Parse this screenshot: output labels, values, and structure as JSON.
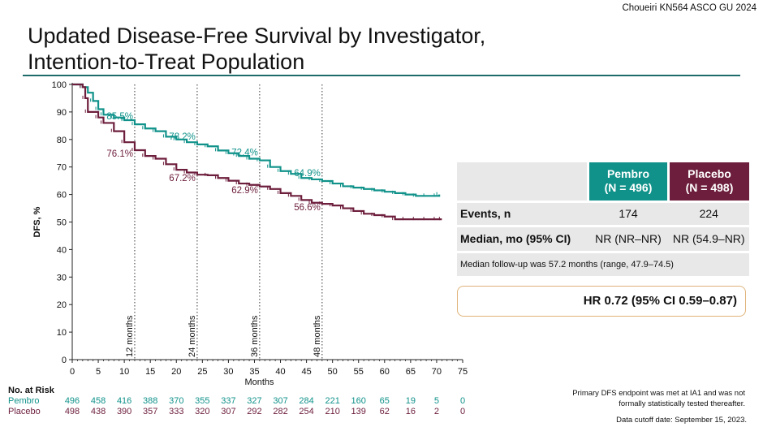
{
  "citation": "Choueiri KN564 ASCO GU 2024",
  "title_lines": [
    "Updated Disease-Free Survival by Investigator,",
    "Intention-to-Treat Population"
  ],
  "colors": {
    "pembro": "#10928a",
    "placebo": "#6d1e3c",
    "rule": "#1e6b6b"
  },
  "chart_data": {
    "type": "line",
    "ylabel": "DFS, %",
    "xlabel": "Months",
    "xlim": [
      0,
      75
    ],
    "ylim": [
      0,
      100
    ],
    "x_ticks": [
      0,
      5,
      10,
      15,
      20,
      25,
      30,
      35,
      40,
      45,
      50,
      55,
      60,
      65,
      70,
      75
    ],
    "y_ticks": [
      0,
      10,
      20,
      30,
      40,
      50,
      60,
      70,
      80,
      90,
      100
    ],
    "landmarks": [
      {
        "x": 12,
        "label": "12 months"
      },
      {
        "x": 24,
        "label": "24 months"
      },
      {
        "x": 36,
        "label": "36 months"
      },
      {
        "x": 48,
        "label": "48 months"
      }
    ],
    "series": [
      {
        "name": "Pembro",
        "color": "#10928a",
        "points": [
          [
            0,
            100
          ],
          [
            2,
            99
          ],
          [
            3,
            97
          ],
          [
            4,
            94
          ],
          [
            5,
            91
          ],
          [
            6,
            89
          ],
          [
            8,
            88
          ],
          [
            10,
            87
          ],
          [
            12,
            85.5
          ],
          [
            14,
            84
          ],
          [
            16,
            83
          ],
          [
            18,
            81
          ],
          [
            20,
            80
          ],
          [
            22,
            79
          ],
          [
            24,
            78.2
          ],
          [
            26,
            77.5
          ],
          [
            28,
            76
          ],
          [
            30,
            75
          ],
          [
            32,
            74
          ],
          [
            34,
            73
          ],
          [
            36,
            72.4
          ],
          [
            38,
            70
          ],
          [
            40,
            68.5
          ],
          [
            42,
            67.5
          ],
          [
            44,
            66
          ],
          [
            46,
            65.5
          ],
          [
            48,
            64.9
          ],
          [
            50,
            64
          ],
          [
            52,
            63
          ],
          [
            54,
            62.5
          ],
          [
            56,
            62
          ],
          [
            58,
            61.5
          ],
          [
            60,
            61
          ],
          [
            62,
            60.5
          ],
          [
            64,
            60
          ],
          [
            66,
            59.5
          ],
          [
            68,
            59.5
          ],
          [
            70,
            59.5
          ],
          [
            70.5,
            60
          ]
        ]
      },
      {
        "name": "Placebo",
        "color": "#6d1e3c",
        "points": [
          [
            0,
            100
          ],
          [
            2,
            99
          ],
          [
            2.5,
            95
          ],
          [
            3,
            90
          ],
          [
            5,
            88
          ],
          [
            6,
            86
          ],
          [
            8,
            83
          ],
          [
            10,
            79
          ],
          [
            12,
            76.1
          ],
          [
            14,
            74
          ],
          [
            16,
            73
          ],
          [
            18,
            71
          ],
          [
            20,
            69
          ],
          [
            22,
            68
          ],
          [
            24,
            67.2
          ],
          [
            26,
            67
          ],
          [
            28,
            66
          ],
          [
            30,
            65
          ],
          [
            32,
            64
          ],
          [
            34,
            63.5
          ],
          [
            36,
            62.9
          ],
          [
            38,
            62
          ],
          [
            40,
            60.5
          ],
          [
            42,
            59.5
          ],
          [
            44,
            58
          ],
          [
            46,
            57
          ],
          [
            48,
            56.6
          ],
          [
            50,
            56
          ],
          [
            52,
            55
          ],
          [
            54,
            54
          ],
          [
            56,
            53
          ],
          [
            58,
            52.5
          ],
          [
            60,
            52
          ],
          [
            62,
            51
          ],
          [
            64,
            51
          ],
          [
            66,
            51
          ],
          [
            68,
            51
          ],
          [
            70,
            51
          ],
          [
            71,
            51
          ]
        ]
      }
    ],
    "annotations": [
      {
        "series": "Pembro",
        "x": 12,
        "y": 85.5,
        "label": "85.5%"
      },
      {
        "series": "Pembro",
        "x": 24,
        "y": 78.2,
        "label": "78.2%"
      },
      {
        "series": "Pembro",
        "x": 36,
        "y": 72.4,
        "label": "72.4%"
      },
      {
        "series": "Pembro",
        "x": 48,
        "y": 64.9,
        "label": "64.9%"
      },
      {
        "series": "Placebo",
        "x": 12,
        "y": 76.1,
        "label": "76.1%"
      },
      {
        "series": "Placebo",
        "x": 24,
        "y": 67.2,
        "label": "67.2%"
      },
      {
        "series": "Placebo",
        "x": 36,
        "y": 62.9,
        "label": "62.9%"
      },
      {
        "series": "Placebo",
        "x": 48,
        "y": 56.6,
        "label": "56.6%"
      }
    ]
  },
  "at_risk": {
    "title": "No. at Risk",
    "times": [
      0,
      5,
      10,
      15,
      20,
      25,
      30,
      35,
      40,
      45,
      50,
      55,
      60,
      65,
      70,
      75
    ],
    "rows": [
      {
        "name": "Pembro",
        "values": [
          "496",
          "458",
          "416",
          "388",
          "370",
          "355",
          "337",
          "327",
          "307",
          "284",
          "221",
          "160",
          "65",
          "19",
          "5",
          "0"
        ]
      },
      {
        "name": "Placebo",
        "values": [
          "498",
          "438",
          "390",
          "357",
          "333",
          "320",
          "307",
          "292",
          "282",
          "254",
          "210",
          "139",
          "62",
          "16",
          "2",
          "0"
        ]
      }
    ]
  },
  "table": {
    "col_pembro": [
      "Pembro",
      "(N = 496)"
    ],
    "col_placebo": [
      "Placebo",
      "(N = 498)"
    ],
    "rows": [
      {
        "label": "Events, n",
        "pembro": "174",
        "placebo": "224"
      },
      {
        "label": "Median, mo (95% CI)",
        "pembro": "NR (NR–NR)",
        "placebo": "NR (54.9–NR)"
      }
    ],
    "footnote": "Median follow-up was 57.2 months (range, 47.9–74.5)"
  },
  "hr_text": "HR 0.72 (95%  CI 0.59–0.87)",
  "note_lines": [
    "Primary DFS endpoint  was met at IA1 and was not",
    "formally  statistically tested thereafter."
  ],
  "cutoff": "Data cutoff date: September 15, 2023."
}
